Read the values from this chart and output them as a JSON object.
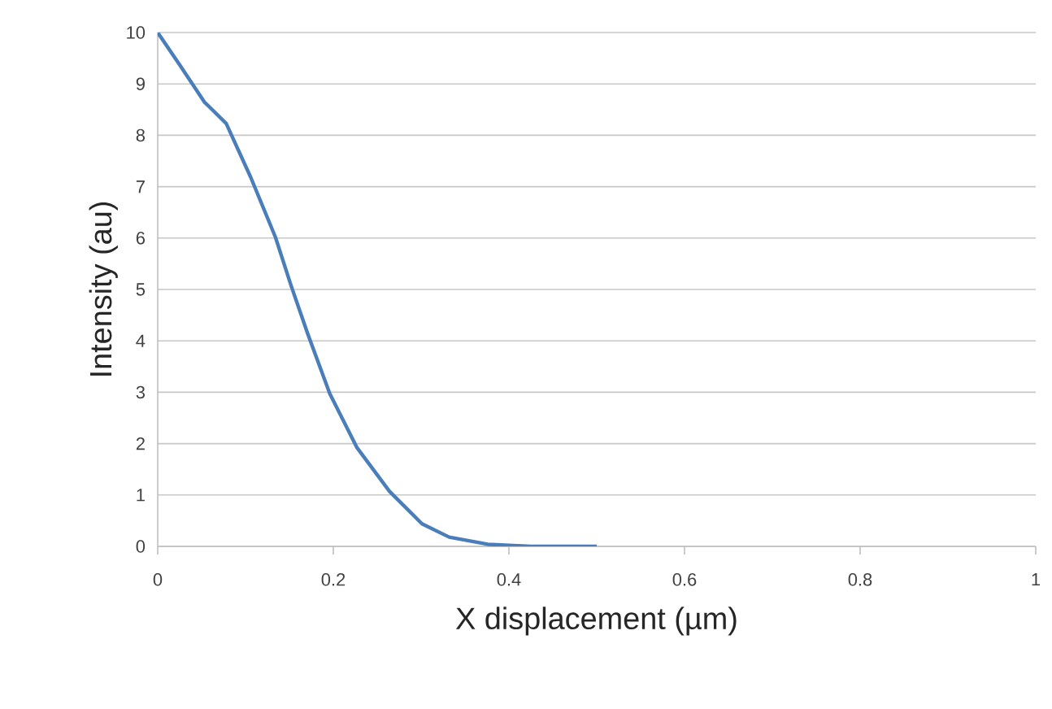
{
  "chart_data": {
    "type": "line",
    "xlabel": "X displacement (µm)",
    "ylabel": "Intensity (au)",
    "xlim": [
      0,
      1
    ],
    "xticks": [
      0,
      0.2,
      0.4,
      0.6,
      0.8,
      1
    ],
    "ylim": [
      0,
      10
    ],
    "yticks": [
      0,
      1,
      2,
      3,
      4,
      5,
      6,
      7,
      8,
      9,
      10
    ],
    "grid": "y",
    "marker": "none",
    "line_style": "solid",
    "series": [
      {
        "color": "#4a7ebb",
        "x": [
          0,
          0.025,
          0.053,
          0.078,
          0.106,
          0.134,
          0.152,
          0.171,
          0.196,
          0.227,
          0.264,
          0.301,
          0.332,
          0.376,
          0.425,
          0.5
        ],
        "values": [
          10,
          9.37,
          8.65,
          8.23,
          7.18,
          6.02,
          5.07,
          4.13,
          2.97,
          1.92,
          1.07,
          0.44,
          0.18,
          0.04,
          0,
          0
        ]
      }
    ]
  }
}
